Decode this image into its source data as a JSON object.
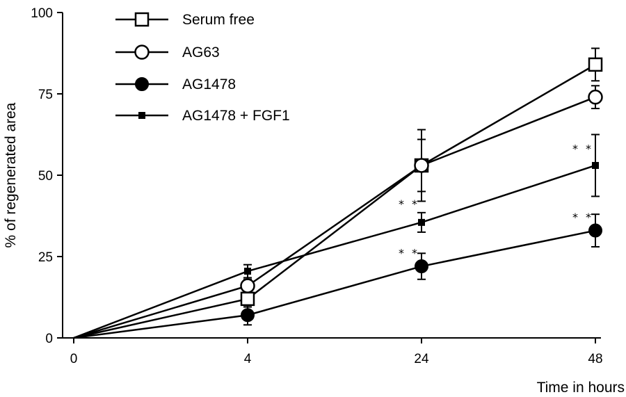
{
  "chart_data": {
    "type": "line",
    "xlabel": "Time in hours",
    "ylabel": "% of regenerated area",
    "x": [
      0,
      4,
      24,
      48
    ],
    "x_tick_labels": [
      "0",
      "4",
      "24",
      "48"
    ],
    "x_scale": "categorical (equally spaced)",
    "ylim": [
      0,
      100
    ],
    "y_ticks": [
      0,
      25,
      50,
      75,
      100
    ],
    "y_tick_labels": [
      "0",
      "25",
      "50",
      "75",
      "100"
    ],
    "grid": false,
    "legend_position": "top-left",
    "series": [
      {
        "name": "Serum free",
        "marker": "open-square",
        "values": [
          0,
          12,
          53,
          84
        ],
        "error": [
          0,
          2.5,
          8,
          5
        ]
      },
      {
        "name": "AG63",
        "marker": "open-circle",
        "values": [
          0,
          16,
          53,
          74
        ],
        "error": [
          0,
          2,
          11,
          3.5
        ]
      },
      {
        "name": "AG1478",
        "marker": "filled-circle",
        "values": [
          0,
          7,
          22,
          33
        ],
        "error": [
          0,
          3,
          4,
          5
        ]
      },
      {
        "name": "AG1478 + FGF1",
        "marker": "filled-small-square",
        "values": [
          0,
          20.5,
          35.5,
          53
        ],
        "error": [
          0,
          2,
          3,
          9.5
        ]
      }
    ],
    "annotations": [
      {
        "text": "* *",
        "x": 24,
        "y": 41
      },
      {
        "text": "* *",
        "x": 24,
        "y": 26
      },
      {
        "text": "* *",
        "x": 48,
        "y": 58
      },
      {
        "text": "* *",
        "x": 48,
        "y": 37
      }
    ]
  }
}
